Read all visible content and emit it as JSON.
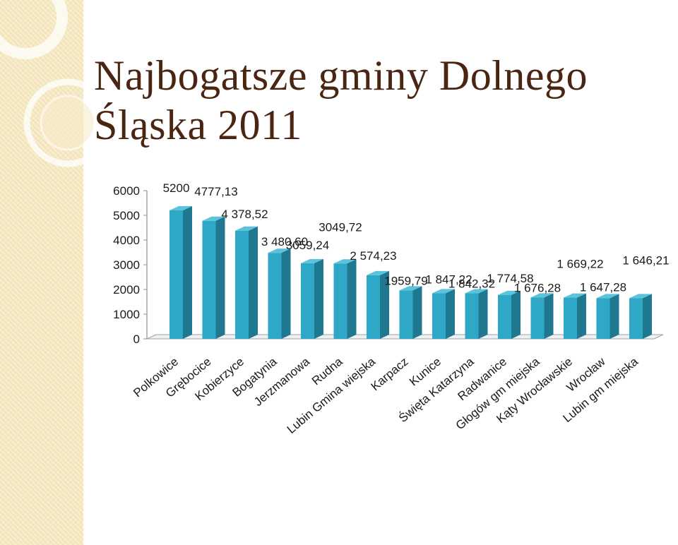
{
  "slide": {
    "title_line1": "Najbogatsze gminy Dolnego",
    "title_line2": "Śląska 2011"
  },
  "colors": {
    "title": "#4a2612",
    "bar_front": "#2fa8c7",
    "bar_side": "#1f7790",
    "bar_top": "#5cc3dc",
    "side_strip": "#f4e7bd"
  },
  "chart_data": {
    "type": "bar",
    "title": "",
    "xlabel": "",
    "ylabel": "",
    "ylim": [
      0,
      6000
    ],
    "y_ticks": [
      "0",
      "1000",
      "2000",
      "3000",
      "4000",
      "5000",
      "6000"
    ],
    "categories": [
      "Polkowice",
      "Grębocice",
      "Kobierzyce",
      "Bogatynia",
      "Jerzmanowa",
      "Rudna",
      "Lubin Gmina wiejska",
      "Karpacz",
      "Kunice",
      "Święta Katarzyna",
      "Radwanice",
      "Głogów gm miejska",
      "Kąty Wrocławskie",
      "Wrocław",
      "Lubin gm miejska"
    ],
    "values": [
      5200,
      4777.13,
      4378.52,
      3480.6,
      3059.24,
      3049.72,
      2574.23,
      1959.79,
      1847.22,
      1842.32,
      1774.58,
      1676.28,
      1669.22,
      1647.28,
      1646.21
    ],
    "value_labels": [
      "5200",
      "4777,13",
      "4 378,52",
      "3 480,60",
      "3059,24",
      "3049,72",
      "2 574,23",
      "1959,79",
      "1 847,22",
      "1 842,32",
      "1 774,58",
      "1 676,28",
      "1 669,22",
      "1 647,28",
      "1 646,21"
    ],
    "grid": false,
    "legend": "none"
  }
}
